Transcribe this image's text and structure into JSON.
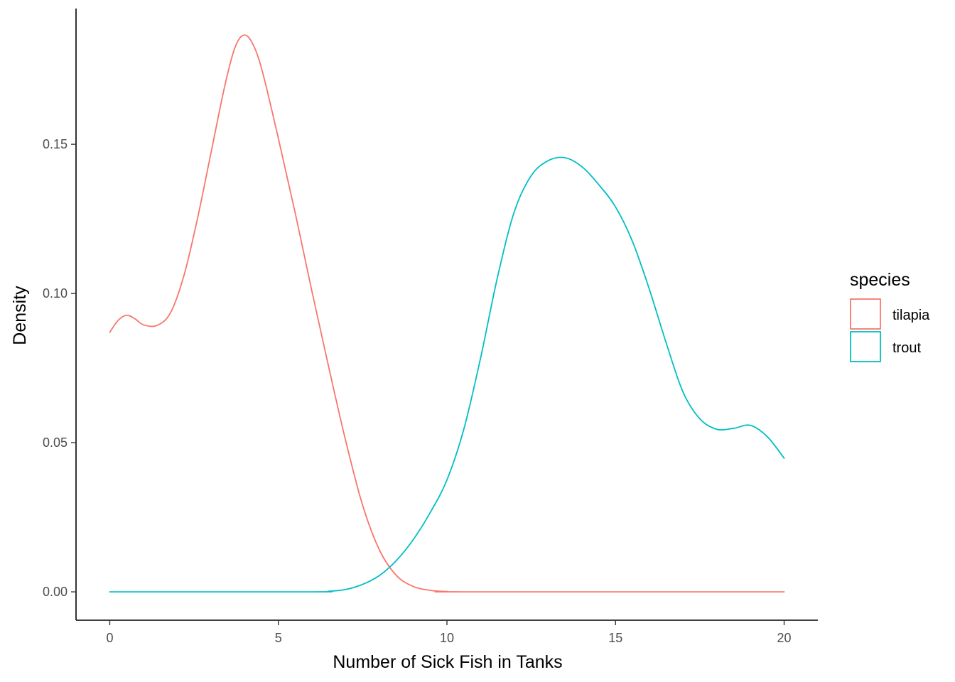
{
  "chart_data": {
    "type": "line",
    "title": "",
    "xlabel": "Number of Sick Fish in Tanks",
    "ylabel": "Density",
    "xlim": [
      -1,
      21
    ],
    "ylim": [
      -0.0095,
      0.1955
    ],
    "x_ticks": [
      0,
      5,
      10,
      15,
      20
    ],
    "x_tick_labels": [
      "0",
      "5",
      "10",
      "15",
      "20"
    ],
    "y_ticks": [
      0,
      0.05,
      0.1,
      0.15
    ],
    "y_tick_labels": [
      "0.00",
      "0.05",
      "0.10",
      "0.15"
    ],
    "grid": false,
    "legend": {
      "title": "species",
      "position": "right",
      "entries": [
        "tilapia",
        "trout"
      ]
    },
    "series": [
      {
        "name": "tilapia",
        "color": "#F8766D",
        "points": [
          [
            0,
            0.087
          ],
          [
            0.25,
            0.091
          ],
          [
            0.5,
            0.0927
          ],
          [
            0.75,
            0.0915
          ],
          [
            1.0,
            0.0895
          ],
          [
            1.4,
            0.0893
          ],
          [
            1.8,
            0.0935
          ],
          [
            2.2,
            0.106
          ],
          [
            2.6,
            0.125
          ],
          [
            3.0,
            0.147
          ],
          [
            3.4,
            0.169
          ],
          [
            3.7,
            0.182
          ],
          [
            3.95,
            0.1865
          ],
          [
            4.2,
            0.1845
          ],
          [
            4.5,
            0.1755
          ],
          [
            5.0,
            0.152
          ],
          [
            5.5,
            0.127
          ],
          [
            6.0,
            0.1005
          ],
          [
            6.5,
            0.075
          ],
          [
            7.0,
            0.0505
          ],
          [
            7.5,
            0.029
          ],
          [
            8.0,
            0.014
          ],
          [
            8.5,
            0.0055
          ],
          [
            9.0,
            0.0018
          ],
          [
            9.5,
            0.0005
          ],
          [
            10.0,
            0.0001
          ],
          [
            10.5,
            0
          ],
          [
            20,
            0
          ]
        ]
      },
      {
        "name": "trout",
        "color": "#00BFC4",
        "points": [
          [
            0,
            0
          ],
          [
            6.0,
            0
          ],
          [
            6.5,
            0.0002
          ],
          [
            7.0,
            0.0008
          ],
          [
            7.5,
            0.0025
          ],
          [
            8.0,
            0.0055
          ],
          [
            8.5,
            0.0105
          ],
          [
            9.0,
            0.0175
          ],
          [
            9.5,
            0.0265
          ],
          [
            10.0,
            0.0375
          ],
          [
            10.5,
            0.0545
          ],
          [
            11.0,
            0.0785
          ],
          [
            11.5,
            0.1055
          ],
          [
            12.0,
            0.1275
          ],
          [
            12.5,
            0.1395
          ],
          [
            13.0,
            0.1445
          ],
          [
            13.5,
            0.1455
          ],
          [
            14.0,
            0.1425
          ],
          [
            14.5,
            0.1365
          ],
          [
            15.0,
            0.129
          ],
          [
            15.5,
            0.1175
          ],
          [
            16.0,
            0.1015
          ],
          [
            16.5,
            0.0835
          ],
          [
            17.0,
            0.067
          ],
          [
            17.5,
            0.058
          ],
          [
            18.0,
            0.0545
          ],
          [
            18.5,
            0.0548
          ],
          [
            19.0,
            0.0558
          ],
          [
            19.5,
            0.052
          ],
          [
            20.0,
            0.0448
          ]
        ]
      }
    ]
  }
}
